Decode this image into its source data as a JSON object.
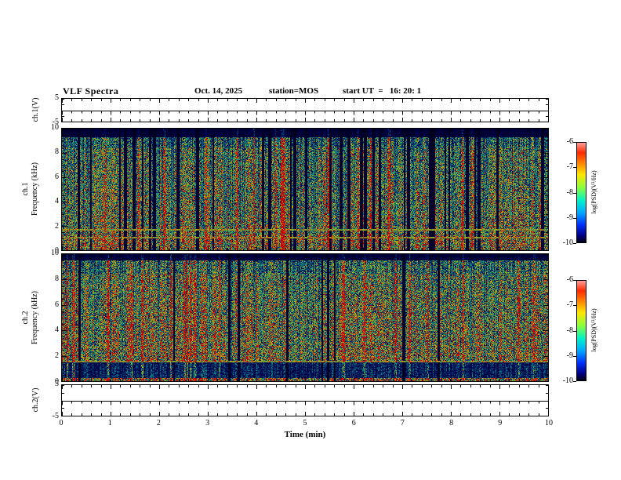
{
  "header": {
    "title": "VLF Spectra",
    "date": "Oct. 14, 2025",
    "station": "station=MOS",
    "start_ut": "start UT  =   16: 20: 1"
  },
  "axes": {
    "xlabel": "Time (min)",
    "xlim": [
      0,
      10
    ],
    "xticks": [
      0,
      1,
      2,
      3,
      4,
      5,
      6,
      7,
      8,
      9,
      10
    ]
  },
  "panels": {
    "ch1v": {
      "ylabel": "ch.1(V)",
      "ylim": [
        -5,
        5
      ],
      "ytick_labels": [
        "5",
        "-5"
      ]
    },
    "ch1spec": {
      "ylabel_line1": "ch.1",
      "ylabel_line2": "Frequency (kHz)",
      "ylim": [
        0,
        10
      ],
      "yticks": [
        0,
        2,
        4,
        6,
        8,
        10
      ]
    },
    "ch2spec": {
      "ylabel_line1": "ch.2",
      "ylabel_line2": "Frequency (kHz)",
      "ylim": [
        0,
        10
      ],
      "yticks": [
        0,
        2,
        4,
        6,
        8,
        10
      ]
    },
    "ch2v": {
      "ylabel": "ch.2(V)",
      "ylim": [
        -5,
        5
      ],
      "ytick_labels": [
        "5",
        "-5"
      ]
    }
  },
  "colorbar": {
    "label": "log(PSD)(V²/Hz)",
    "ticks": [
      -6,
      -7,
      -8,
      -9,
      -10
    ]
  },
  "chart_data": [
    {
      "type": "line",
      "name": "ch1-voltage",
      "ylabel": "ch.1(V)",
      "xlim": [
        0,
        10
      ],
      "ylim": [
        -5,
        5
      ],
      "series": [
        {
          "name": "ch.1 voltage",
          "value_v": 0,
          "description": "flat trace at 0 V across the full 10 minute record"
        }
      ]
    },
    {
      "type": "heatmap",
      "name": "ch1-spectrogram",
      "xlabel": "Time (min)",
      "ylabel": "Frequency (kHz)",
      "xlim": [
        0,
        10
      ],
      "ylim": [
        0,
        10
      ],
      "zlabel": "log(PSD)(V²/Hz)",
      "zlim": [
        -10,
        -6
      ],
      "colormap": "jet on black",
      "description": "Dense broadband impulsive sferic activity 0.3-9.3 kHz; many narrow vertical dropout gaps and sporadic saturated red bursts; dark background band above ~9.4 kHz; persistent narrowband lines near 1.05 and 1.7 kHz; bright band below ~1.3 kHz",
      "texture": {
        "seed": 1234567,
        "gap_prob": 0.16,
        "hot_prob": 0.055,
        "base_gain": 1.0,
        "top_dark_khz": 9.35,
        "lines_khz": [
          1.7,
          1.05
        ],
        "low_bright_below_khz": 1.3
      }
    },
    {
      "type": "heatmap",
      "name": "ch2-spectrogram",
      "xlabel": "Time (min)",
      "ylabel": "Frequency (kHz)",
      "xlim": [
        0,
        10
      ],
      "ylim": [
        0,
        10
      ],
      "zlabel": "log(PSD)(V²/Hz)",
      "zlim": [
        -10,
        -6
      ],
      "colormap": "jet on black",
      "description": "Nearly continuous broadband VLF noise 1.5-9.5 kHz with yellow-red bursts; dark band below ~1.5 kHz containing a narrowband line near 1.6 kHz and a bright edge at 0 kHz; thin dark band above ~9.6 kHz",
      "texture": {
        "seed": 7654321,
        "gap_prob": 0.05,
        "hot_prob": 0.07,
        "base_gain": 1.12,
        "top_dark_khz": 9.55,
        "lines_khz": [
          1.6
        ],
        "low_dark_below_khz": 1.5
      }
    },
    {
      "type": "line",
      "name": "ch2-voltage",
      "ylabel": "ch.2(V)",
      "xlim": [
        0,
        10
      ],
      "ylim": [
        -5,
        5
      ],
      "series": [
        {
          "name": "ch.2 voltage",
          "value_v": 0,
          "description": "flat trace at 0 V across the full 10 minute record"
        }
      ]
    }
  ]
}
